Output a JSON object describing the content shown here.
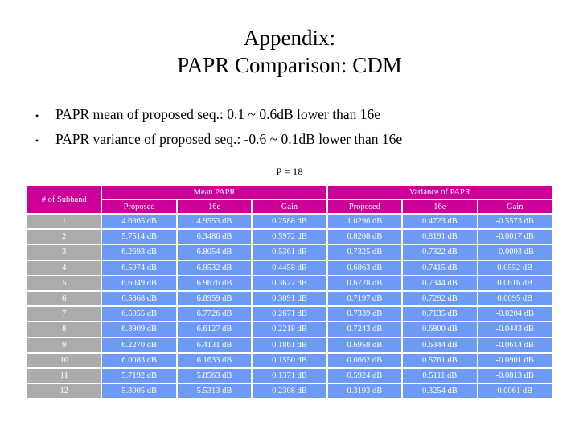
{
  "slide": {
    "title_line1": "Appendix:",
    "title_line2": "PAPR Comparison: CDM",
    "bullet_glyph": "•",
    "bullets": [
      "PAPR mean of proposed seq.: 0.1 ~ 0.6dB lower than 16e",
      "PAPR variance of proposed seq.: -0.6 ~ 0.1dB lower than 16e"
    ],
    "table_caption": "P = 18"
  },
  "colors": {
    "slide_bg": "#ffffff",
    "title_text": "#000000",
    "header_bg": "#cc0099",
    "row_label_bg": "#ababab",
    "data_bg": "#6d9af5",
    "cell_text": "#ffffff"
  },
  "table": {
    "corner_header": "# of Subband",
    "group_headers": [
      "Mean PAPR",
      "Variance of PAPR"
    ],
    "sub_headers": [
      "Proposed",
      "16e",
      "Gain",
      "Proposed",
      "16e",
      "Gain"
    ],
    "rows": [
      {
        "subband": "1",
        "cells": [
          "4.6965 dB",
          "4.9553 dB",
          "0.2588 dB",
          "1.0296 dB",
          "0.4723 dB",
          "-0.5573 dB"
        ]
      },
      {
        "subband": "2",
        "cells": [
          "5.7514 dB",
          "6.3486 dB",
          "0.5972 dB",
          "0.8208 dB",
          "0.8191 dB",
          "-0.0017 dB"
        ]
      },
      {
        "subband": "3",
        "cells": [
          "6.2693 dB",
          "6.8054 dB",
          "0.5361 dB",
          "0.7325 dB",
          "0.7322 dB",
          "-0.0003 dB"
        ]
      },
      {
        "subband": "4",
        "cells": [
          "6.5074 dB",
          "6.9532 dB",
          "0.4458 dB",
          "0.6863 dB",
          "0.7415 dB",
          "0.0552 dB"
        ]
      },
      {
        "subband": "5",
        "cells": [
          "6.6049 dB",
          "6.9676 dB",
          "0.3627 dB",
          "0.6728 dB",
          "0.7344 dB",
          "0.0616 dB"
        ]
      },
      {
        "subband": "6",
        "cells": [
          "6.5868 dB",
          "6.8959 dB",
          "0.3091 dB",
          "0.7197 dB",
          "0.7292 dB",
          "0.0095 dB"
        ]
      },
      {
        "subband": "7",
        "cells": [
          "6.5055 dB",
          "6.7726 dB",
          "0.2671 dB",
          "0.7339 dB",
          "0.7135 dB",
          "-0.0204 dB"
        ]
      },
      {
        "subband": "8",
        "cells": [
          "6.3909 dB",
          "6.6127 dB",
          "0.2218 dB",
          "0.7243 dB",
          "0.6800 dB",
          "-0.0443 dB"
        ]
      },
      {
        "subband": "9",
        "cells": [
          "6.2270 dB",
          "6.4131 dB",
          "0.1861 dB",
          "0.6958 dB",
          "0.6344 dB",
          "-0.0614 dB"
        ]
      },
      {
        "subband": "10",
        "cells": [
          "6.0083 dB",
          "6.1633 dB",
          "0.1550 dB",
          "0.6662 dB",
          "0.5761 dB",
          "-0.0901 dB"
        ]
      },
      {
        "subband": "11",
        "cells": [
          "5.7192 dB",
          "5.8563 dB",
          "0.1371 dB",
          "0.5924 dB",
          "0.5111 dB",
          "-0.0813 dB"
        ]
      },
      {
        "subband": "12",
        "cells": [
          "5.3005 dB",
          "5.5313 dB",
          "0.2308 dB",
          "0.3193 dB",
          "0.3254 dB",
          "0.0061 dB"
        ]
      }
    ]
  }
}
